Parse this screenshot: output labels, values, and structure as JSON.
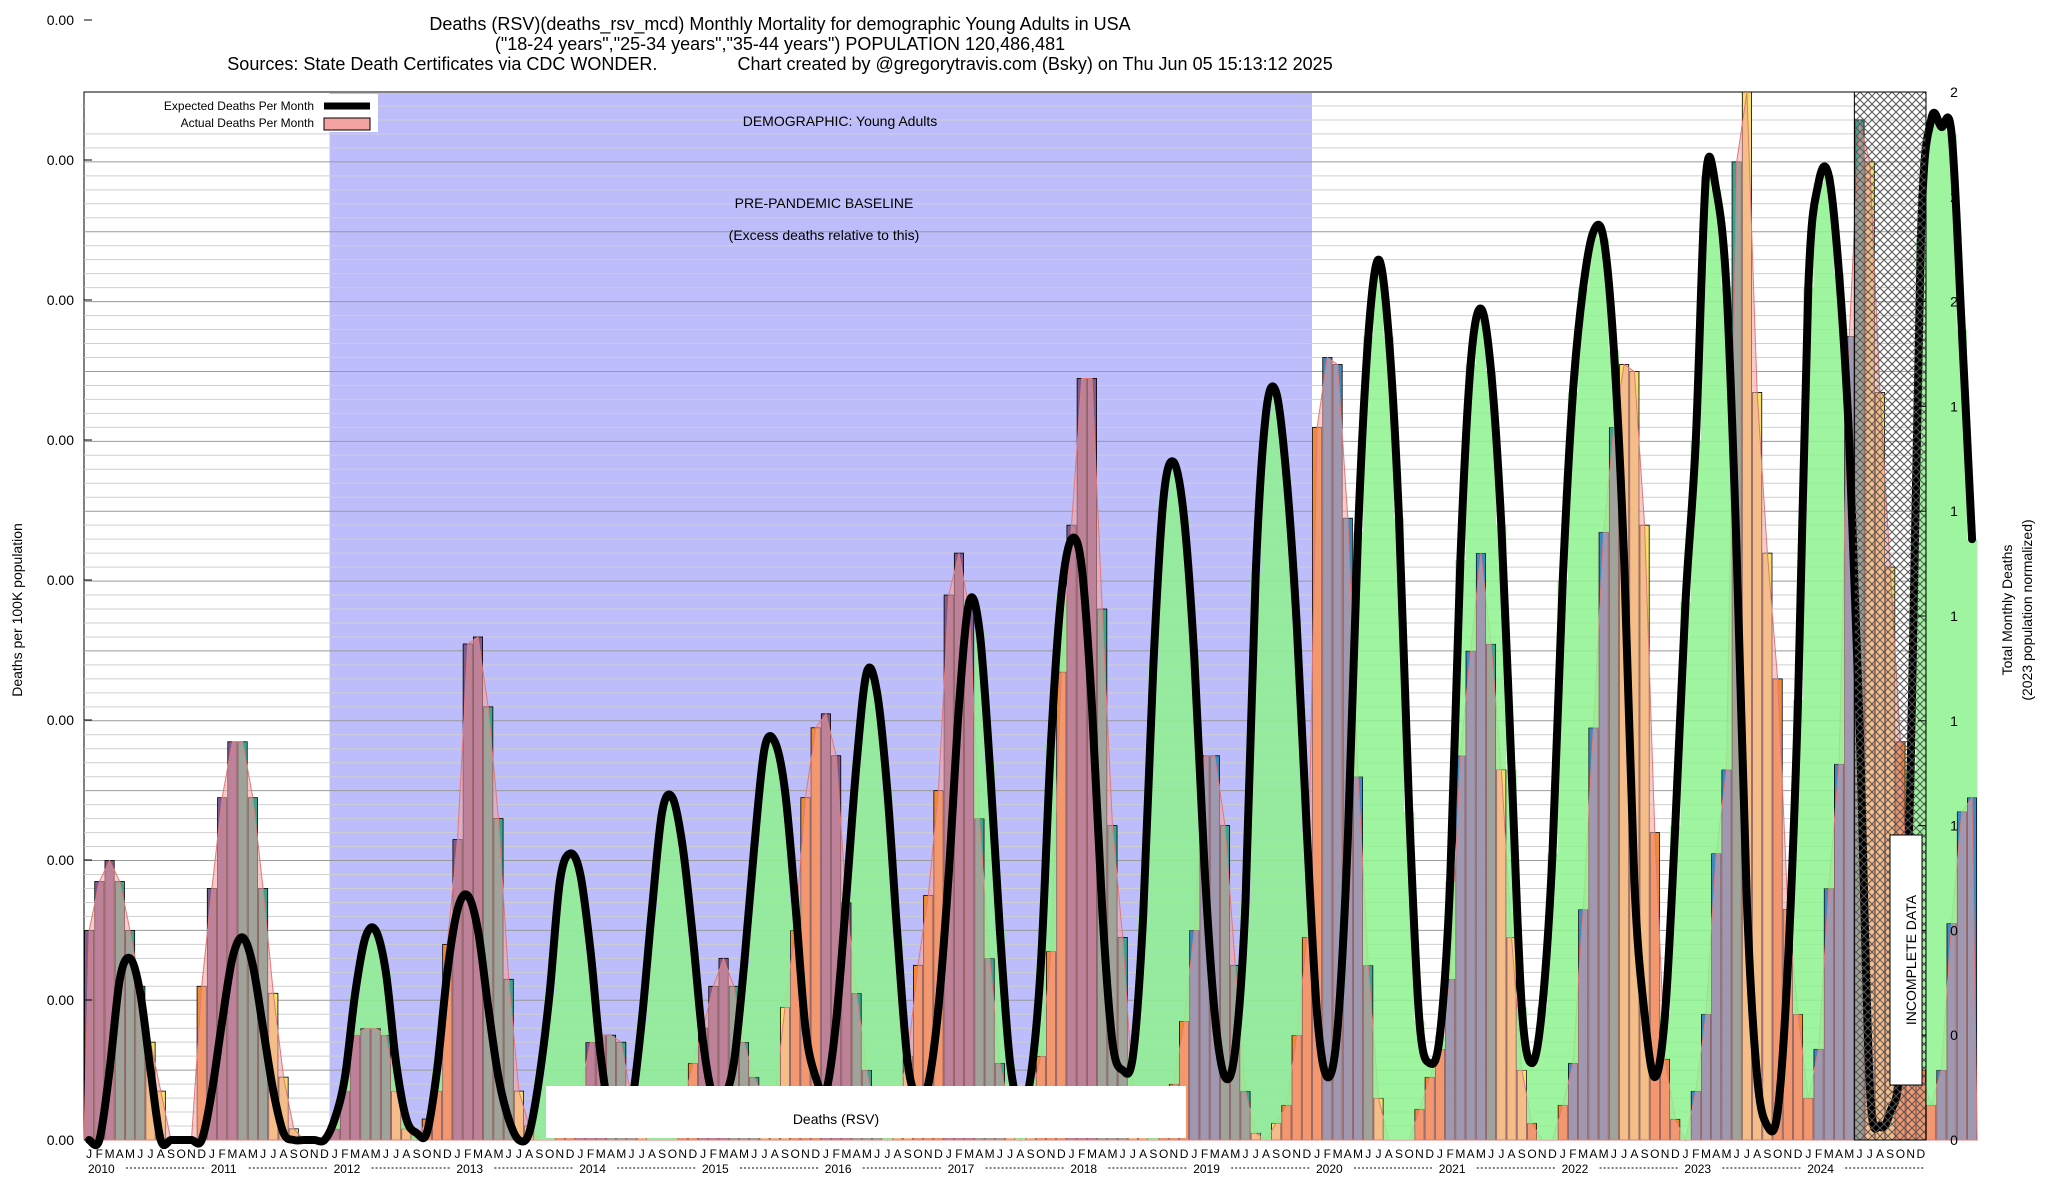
{
  "header": {
    "title": "Deaths (RSV)(deaths_rsv_mcd) Monthly Mortality for demographic Young Adults in USA",
    "subtitle": "(\"18-24 years\",\"25-34 years\",\"35-44 years\") POPULATION 120,486,481",
    "sources": "Sources: State Death Certificates via CDC WONDER.",
    "credit": "Chart created by @gregorytravis.com (Bsky) on Thu Jun 05 15:13:12 2025"
  },
  "legend": {
    "expected": "Expected Deaths Per Month",
    "actual": "Actual Deaths Per Month"
  },
  "annotations": {
    "demographic": "DEMOGRAPHIC: Young Adults",
    "baseline_line1": "PRE-PANDEMIC BASELINE",
    "baseline_line2": "(Excess deaths relative to this)",
    "metric": "Deaths (RSV)",
    "incomplete": "INCOMPLETE DATA"
  },
  "colors": {
    "baseline_band": "#bdbdfb",
    "green_fill": "#99ff99",
    "blue_bar": "#3b8bc2",
    "orange_bar": "#f28b30",
    "yellow_bar": "#f5e16a",
    "teal_bar": "#3aa58f",
    "purple_bar": "#7b5c8f",
    "expected_line": "#000000",
    "actual_fill": "#f4a3a3"
  },
  "chart_data": {
    "type": "bar",
    "x_start": "2010-01",
    "months": [
      "J",
      "F",
      "M",
      "A",
      "M",
      "J",
      "J",
      "A",
      "S",
      "O",
      "N",
      "D"
    ],
    "years": [
      "2010",
      "2011",
      "2012",
      "2013",
      "2014",
      "2015",
      "2016",
      "2017",
      "2018",
      "2019",
      "2020",
      "2021",
      "2022",
      "2023",
      "2024"
    ],
    "xlabel": "",
    "ylabel": "Deaths per 100K population",
    "y2label_line1": "Total Monthly Deaths",
    "y2label_line2": "(2023 population normalized)",
    "y_tick_labels": [
      "0.00",
      "0.00",
      "0.00",
      "0.00",
      "0.00",
      "0.00",
      "0.00",
      "0.00",
      "0.00"
    ],
    "y2_tick_labels": [
      "0",
      "0",
      "0",
      "1",
      "1",
      "1",
      "1",
      "1",
      "2",
      "2",
      "2"
    ],
    "ylim": [
      0,
      7.5
    ],
    "baseline_period": [
      "2012-01",
      "2019-12"
    ],
    "incomplete_from": "2024-06",
    "series": [
      {
        "name": "Actual Deaths Per Month",
        "values": [
          1.5,
          1.85,
          2.0,
          1.85,
          1.5,
          1.1,
          0.7,
          0.35,
          0,
          0,
          0,
          1.1,
          1.8,
          2.45,
          2.85,
          2.85,
          2.45,
          1.8,
          1.05,
          0.45,
          0.08,
          0,
          0,
          0,
          0.08,
          0.35,
          0.75,
          0.8,
          0.8,
          0.75,
          0.35,
          0.08,
          0,
          0.15,
          0.35,
          1.4,
          2.15,
          3.55,
          3.6,
          3.1,
          2.3,
          1.15,
          0.35,
          0.1,
          0,
          0,
          0.1,
          0.25,
          0.35,
          0.7,
          0.75,
          0.75,
          0.7,
          0.3,
          0.05,
          0,
          0,
          0,
          0.25,
          0.55,
          0.8,
          1.1,
          1.3,
          1.1,
          0.7,
          0.45,
          0.3,
          0.3,
          0.95,
          1.5,
          2.45,
          2.95,
          3.05,
          2.75,
          1.7,
          1.05,
          0.5,
          0.1,
          0,
          0.3,
          0.6,
          1.25,
          1.75,
          2.5,
          3.9,
          4.2,
          3.8,
          2.3,
          1.3,
          0.55,
          0.2,
          0,
          0.3,
          0.6,
          1.35,
          3.35,
          4.4,
          5.45,
          5.45,
          3.8,
          2.25,
          1.45,
          0.35,
          0.05,
          0,
          0.2,
          0.4,
          0.85,
          1.5,
          2.75,
          2.75,
          2.25,
          1.25,
          0.35,
          0.05,
          0,
          0.12,
          0.25,
          0.75,
          1.45,
          5.1,
          5.6,
          5.55,
          4.45,
          2.6,
          1.25,
          0.3,
          0,
          0,
          0,
          0.22,
          0.45,
          0.65,
          1.15,
          2.75,
          3.5,
          4.2,
          3.55,
          2.65,
          1.45,
          0.5,
          0.12,
          0,
          0,
          0.25,
          0.55,
          1.65,
          2.95,
          4.35,
          5.1,
          5.55,
          5.5,
          4.4,
          2.2,
          0.58,
          0.15,
          0,
          0.35,
          0.9,
          2.05,
          2.65,
          7.0,
          7.5,
          5.35,
          4.2,
          3.3,
          1.65,
          0.9,
          0.3,
          0.65,
          1.8,
          2.69,
          5.75,
          7.3,
          7.0,
          5.35,
          4.1,
          2.85,
          1.25,
          0.5,
          0.25,
          0.5,
          1.55,
          2.35,
          2.45
        ]
      },
      {
        "name": "Expected Deaths Per Month",
        "values": [
          0,
          0,
          0.5,
          1.15,
          1.3,
          1.05,
          0.5,
          0,
          0,
          0,
          0,
          0,
          0.35,
          0.85,
          1.3,
          1.45,
          1.25,
          0.8,
          0.35,
          0.05,
          0,
          0,
          0,
          0,
          0.15,
          0.45,
          1.05,
          1.45,
          1.5,
          1.2,
          0.55,
          0.15,
          0.05,
          0.05,
          0.5,
          1.2,
          1.65,
          1.75,
          1.5,
          0.95,
          0.45,
          0.15,
          0,
          0.05,
          0.45,
          1.05,
          1.85,
          2.05,
          1.9,
          1.35,
          0.6,
          0.15,
          0.1,
          0.25,
          0.85,
          1.65,
          2.35,
          2.45,
          2.1,
          1.45,
          0.7,
          0.3,
          0.3,
          0.55,
          1.25,
          2.1,
          2.8,
          2.85,
          2.5,
          1.7,
          0.8,
          0.45,
          0.35,
          0.85,
          1.75,
          2.7,
          3.35,
          3.2,
          2.5,
          1.45,
          0.55,
          0.3,
          0.4,
          0.95,
          1.9,
          3.1,
          3.85,
          3.65,
          2.7,
          1.5,
          0.55,
          0.25,
          0.45,
          1.25,
          2.85,
          3.9,
          4.3,
          4.1,
          3.1,
          1.65,
          0.7,
          0.5,
          0.6,
          1.6,
          3.4,
          4.6,
          4.85,
          4.45,
          3.45,
          1.95,
          0.9,
          0.45,
          0.65,
          1.7,
          4.05,
          5.2,
          5.35,
          4.75,
          3.7,
          2.2,
          0.9,
          0.45,
          0.8,
          2.15,
          4.35,
          5.75,
          6.3,
          5.75,
          4.45,
          2.35,
          0.85,
          0.55,
          0.75,
          1.85,
          4.15,
          5.55,
          5.95,
          5.5,
          4.4,
          2.65,
          0.95,
          0.55,
          0.95,
          2.05,
          4.0,
          5.35,
          6.1,
          6.5,
          6.45,
          5.65,
          4.15,
          1.85,
          0.9,
          0.45,
          0.9,
          2.25,
          3.85,
          5.0,
          6.9,
          6.8,
          6.1,
          4.2,
          1.7,
          0.45,
          0.1,
          0.2,
          1.25,
          3.15,
          6.1,
          6.85,
          6.9,
          6.2,
          5.0,
          3.0,
          0.4,
          0.1,
          0.2,
          0.6,
          2.65,
          6.45,
          7.3,
          7.25,
          7.2,
          5.8,
          4.3
        ]
      }
    ]
  }
}
